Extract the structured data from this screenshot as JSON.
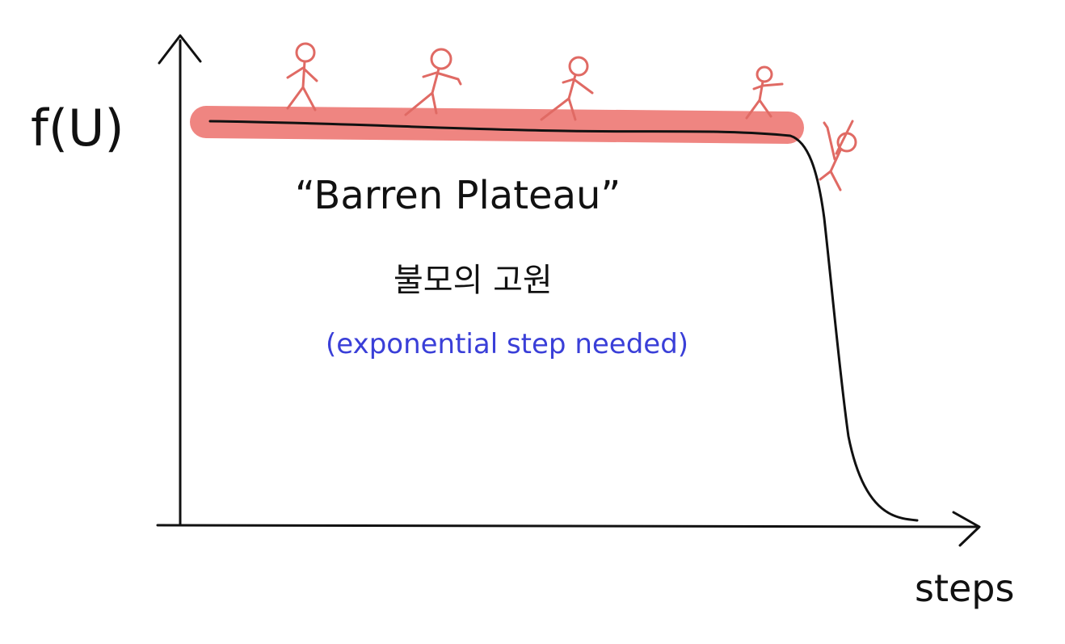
{
  "diagram": {
    "y_axis_label": "f(U)",
    "x_axis_label": "steps",
    "plateau_label": "“Barren Plateau”",
    "korean_label": "불모의 고원",
    "note": "(exponential step needed)",
    "figure_count": 5,
    "colors": {
      "ink": "#111111",
      "plateau_highlight": "#ef7f7b",
      "figure": "#e06a64",
      "note": "#3a3fd8"
    }
  }
}
